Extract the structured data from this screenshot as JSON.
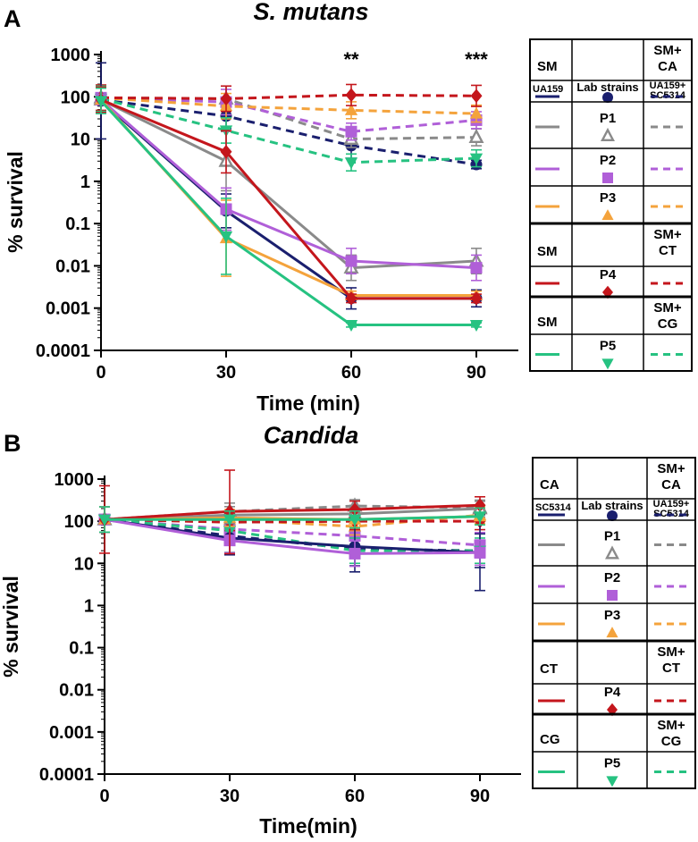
{
  "chart_data": [
    {
      "type": "line",
      "panel_letter": "A",
      "title": "S. mutans",
      "xlabel": "Time (min)",
      "ylabel": "% survival",
      "yscale": "log",
      "ylim": [
        0.0001,
        1000
      ],
      "x": [
        0,
        30,
        60,
        90
      ],
      "x_tick_labels": [
        "0",
        "30",
        "60",
        "90"
      ],
      "y_tick_labels": [
        "1000",
        "100",
        "10",
        "1",
        "0.1",
        "0.01",
        "0.001",
        "0.0001"
      ],
      "annotations": [
        {
          "x": 60,
          "text": "**"
        },
        {
          "x": 90,
          "text": "***"
        }
      ],
      "series": [
        {
          "name": "UA159 (SM)",
          "color": "#1a1f6e",
          "dash": false,
          "marker": "circle",
          "values": [
            80,
            0.2,
            0.0017,
            0.0017
          ],
          "err": [
            0.9,
            0.4,
            0.25,
            0.2
          ]
        },
        {
          "name": "P1 (SM)",
          "color": "#8a8a8a",
          "dash": false,
          "marker": "triangle-open",
          "values": [
            85,
            3,
            0.009,
            0.013
          ],
          "err": [
            0.3,
            0.7,
            0.3,
            0.3
          ]
        },
        {
          "name": "P2 (SM)",
          "color": "#b05fd8",
          "dash": false,
          "marker": "square",
          "values": [
            85,
            0.22,
            0.013,
            0.009
          ],
          "err": [
            0.3,
            0.5,
            0.3,
            0.3
          ]
        },
        {
          "name": "P3 (SM)",
          "color": "#f4a33c",
          "dash": false,
          "marker": "triangle",
          "values": [
            85,
            0.045,
            0.002,
            0.002
          ],
          "err": [
            0.3,
            0.9,
            0.1,
            0.1
          ]
        },
        {
          "name": "P4 (SM)",
          "color": "#c4161c",
          "dash": false,
          "marker": "diamond",
          "values": [
            85,
            5,
            0.0017,
            0.0017
          ],
          "err": [
            0.3,
            0.5,
            0.1,
            0.1
          ]
        },
        {
          "name": "P5 (SM)",
          "color": "#26c281",
          "dash": false,
          "marker": "triangle-down",
          "values": [
            80,
            0.05,
            0.0004,
            0.0004
          ],
          "err": [
            0.3,
            0.9,
            0.05,
            0.05
          ]
        },
        {
          "name": "UA159+SC5314 (SM+CA)",
          "color": "#1a1f6e",
          "dash": true,
          "marker": "circle",
          "values": [
            85,
            35,
            7,
            2.5
          ],
          "err": [
            0.3,
            0.3,
            0.3,
            0.1
          ]
        },
        {
          "name": "P1 (SM+CA)",
          "color": "#8a8a8a",
          "dash": true,
          "marker": "triangle-open",
          "values": [
            95,
            90,
            10,
            11
          ],
          "err": [
            0.3,
            0.3,
            0.2,
            0.2
          ]
        },
        {
          "name": "P2 (SM+CA)",
          "color": "#b05fd8",
          "dash": true,
          "marker": "square",
          "values": [
            95,
            75,
            15,
            28
          ],
          "err": [
            0.3,
            0.3,
            0.2,
            0.2
          ]
        },
        {
          "name": "P3 (SM+CA)",
          "color": "#f4a33c",
          "dash": true,
          "marker": "triangle",
          "values": [
            95,
            60,
            48,
            40
          ],
          "err": [
            0.3,
            0.3,
            0.2,
            0.2
          ]
        },
        {
          "name": "P4 (SM+CT)",
          "color": "#c4161c",
          "dash": true,
          "marker": "diamond",
          "values": [
            95,
            90,
            110,
            105
          ],
          "err": [
            0.3,
            0.3,
            0.25,
            0.25
          ]
        },
        {
          "name": "P5 (SM+CG)",
          "color": "#26c281",
          "dash": true,
          "marker": "triangle-down",
          "values": [
            90,
            16,
            2.8,
            3.5
          ],
          "err": [
            0.3,
            0.3,
            0.2,
            0.2
          ]
        }
      ]
    },
    {
      "type": "line",
      "panel_letter": "B",
      "title": "Candida",
      "xlabel": "Time(min)",
      "ylabel": "% survival",
      "yscale": "log",
      "ylim": [
        0.0001,
        1000
      ],
      "x": [
        0,
        30,
        60,
        90
      ],
      "x_tick_labels": [
        "0",
        "30",
        "60",
        "90"
      ],
      "y_tick_labels": [
        "1000",
        "100",
        "10",
        "1",
        "0.1",
        "0.01",
        "0.001",
        "0.0001"
      ],
      "annotations": [],
      "series": [
        {
          "name": "SC5314 (CA)",
          "color": "#1a1f6e",
          "dash": false,
          "marker": "circle",
          "values": [
            110,
            40,
            25,
            18
          ],
          "err": [
            0.3,
            0.4,
            0.6,
            0.9
          ]
        },
        {
          "name": "P1 (CA)",
          "color": "#8a8a8a",
          "dash": false,
          "marker": "triangle-open",
          "values": [
            110,
            140,
            150,
            200
          ],
          "err": [
            0.3,
            0.2,
            0.2,
            0.2
          ]
        },
        {
          "name": "P2 (CA)",
          "color": "#b05fd8",
          "dash": false,
          "marker": "square",
          "values": [
            110,
            35,
            17,
            18
          ],
          "err": [
            0.3,
            0.3,
            0.3,
            0.3
          ]
        },
        {
          "name": "P3 (CA)",
          "color": "#f4a33c",
          "dash": false,
          "marker": "triangle",
          "values": [
            110,
            120,
            110,
            130
          ],
          "err": [
            0.3,
            0.2,
            0.2,
            0.2
          ]
        },
        {
          "name": "P4 (CT)",
          "color": "#c4161c",
          "dash": false,
          "marker": "diamond",
          "values": [
            110,
            170,
            190,
            240
          ],
          "err": [
            0.8,
            1.0,
            0.2,
            0.2
          ]
        },
        {
          "name": "P5 (CG)",
          "color": "#26c281",
          "dash": false,
          "marker": "triangle-down",
          "values": [
            110,
            110,
            110,
            130
          ],
          "err": [
            0.3,
            0.2,
            0.2,
            0.2
          ]
        },
        {
          "name": "UA159+SC5314 (SM+CA)",
          "color": "#1a1f6e",
          "dash": true,
          "marker": "circle",
          "values": [
            110,
            45,
            22,
            20
          ],
          "err": [
            0.3,
            0.4,
            0.4,
            0.4
          ]
        },
        {
          "name": "P1 (SM+CA)",
          "color": "#8a8a8a",
          "dash": true,
          "marker": "triangle-open",
          "values": [
            110,
            170,
            230,
            210
          ],
          "err": [
            0.3,
            0.2,
            0.15,
            0.15
          ]
        },
        {
          "name": "P2 (SM+CA)",
          "color": "#b05fd8",
          "dash": true,
          "marker": "square",
          "values": [
            110,
            65,
            45,
            27
          ],
          "err": [
            0.3,
            0.3,
            0.3,
            0.3
          ]
        },
        {
          "name": "P3 (SM+CA)",
          "color": "#f4a33c",
          "dash": true,
          "marker": "triangle",
          "values": [
            110,
            110,
            75,
            140
          ],
          "err": [
            0.3,
            0.2,
            0.2,
            0.2
          ]
        },
        {
          "name": "P4 (SM+CT)",
          "color": "#c4161c",
          "dash": true,
          "marker": "diamond",
          "values": [
            110,
            95,
            100,
            100
          ],
          "err": [
            0.3,
            0.2,
            0.2,
            0.2
          ]
        },
        {
          "name": "P5 (SM+CG)",
          "color": "#26c281",
          "dash": true,
          "marker": "triangle-down",
          "values": [
            110,
            60,
            20,
            20
          ],
          "err": [
            0.3,
            0.3,
            0.3,
            0.3
          ]
        }
      ]
    }
  ],
  "legends": [
    {
      "rows": [
        {
          "left": "SM",
          "mid": "",
          "right": "SM+\nCA",
          "header": true
        },
        {
          "left_label": "UA159",
          "mid": "Lab strains",
          "right_label": "UA159+\nSC5314",
          "color": "#1a1f6e",
          "marker": "circle"
        },
        {
          "left_label": "",
          "mid": "P1",
          "right_label": "",
          "color": "#8a8a8a",
          "marker": "triangle-open"
        },
        {
          "left_label": "",
          "mid": "P2",
          "right_label": "",
          "color": "#b05fd8",
          "marker": "square"
        },
        {
          "left_label": "",
          "mid": "P3",
          "right_label": "",
          "color": "#f4a33c",
          "marker": "triangle"
        },
        {
          "left": "SM",
          "mid": "",
          "right": "SM+\nCT",
          "header": true
        },
        {
          "left_label": "",
          "mid": "P4",
          "right_label": "",
          "color": "#c4161c",
          "marker": "diamond"
        },
        {
          "left": "SM",
          "mid": "",
          "right": "SM+\nCG",
          "header": true
        },
        {
          "left_label": "",
          "mid": "P5",
          "right_label": "",
          "color": "#26c281",
          "marker": "triangle-down"
        }
      ]
    },
    {
      "rows": [
        {
          "left": "CA",
          "mid": "",
          "right": "SM+\nCA",
          "header": true
        },
        {
          "left_label": "SC5314",
          "mid": "Lab strains",
          "right_label": "UA159+\nSC5314",
          "color": "#1a1f6e",
          "marker": "circle"
        },
        {
          "left_label": "",
          "mid": "P1",
          "right_label": "",
          "color": "#8a8a8a",
          "marker": "triangle-open"
        },
        {
          "left_label": "",
          "mid": "P2",
          "right_label": "",
          "color": "#b05fd8",
          "marker": "square"
        },
        {
          "left_label": "",
          "mid": "P3",
          "right_label": "",
          "color": "#f4a33c",
          "marker": "triangle"
        },
        {
          "left": "CT",
          "mid": "",
          "right": "SM+\nCT",
          "header": true
        },
        {
          "left_label": "",
          "mid": "P4",
          "right_label": "",
          "color": "#c4161c",
          "marker": "diamond"
        },
        {
          "left": "CG",
          "mid": "",
          "right": "SM+\nCG",
          "header": true
        },
        {
          "left_label": "",
          "mid": "P5",
          "right_label": "",
          "color": "#26c281",
          "marker": "triangle-down"
        }
      ]
    }
  ]
}
